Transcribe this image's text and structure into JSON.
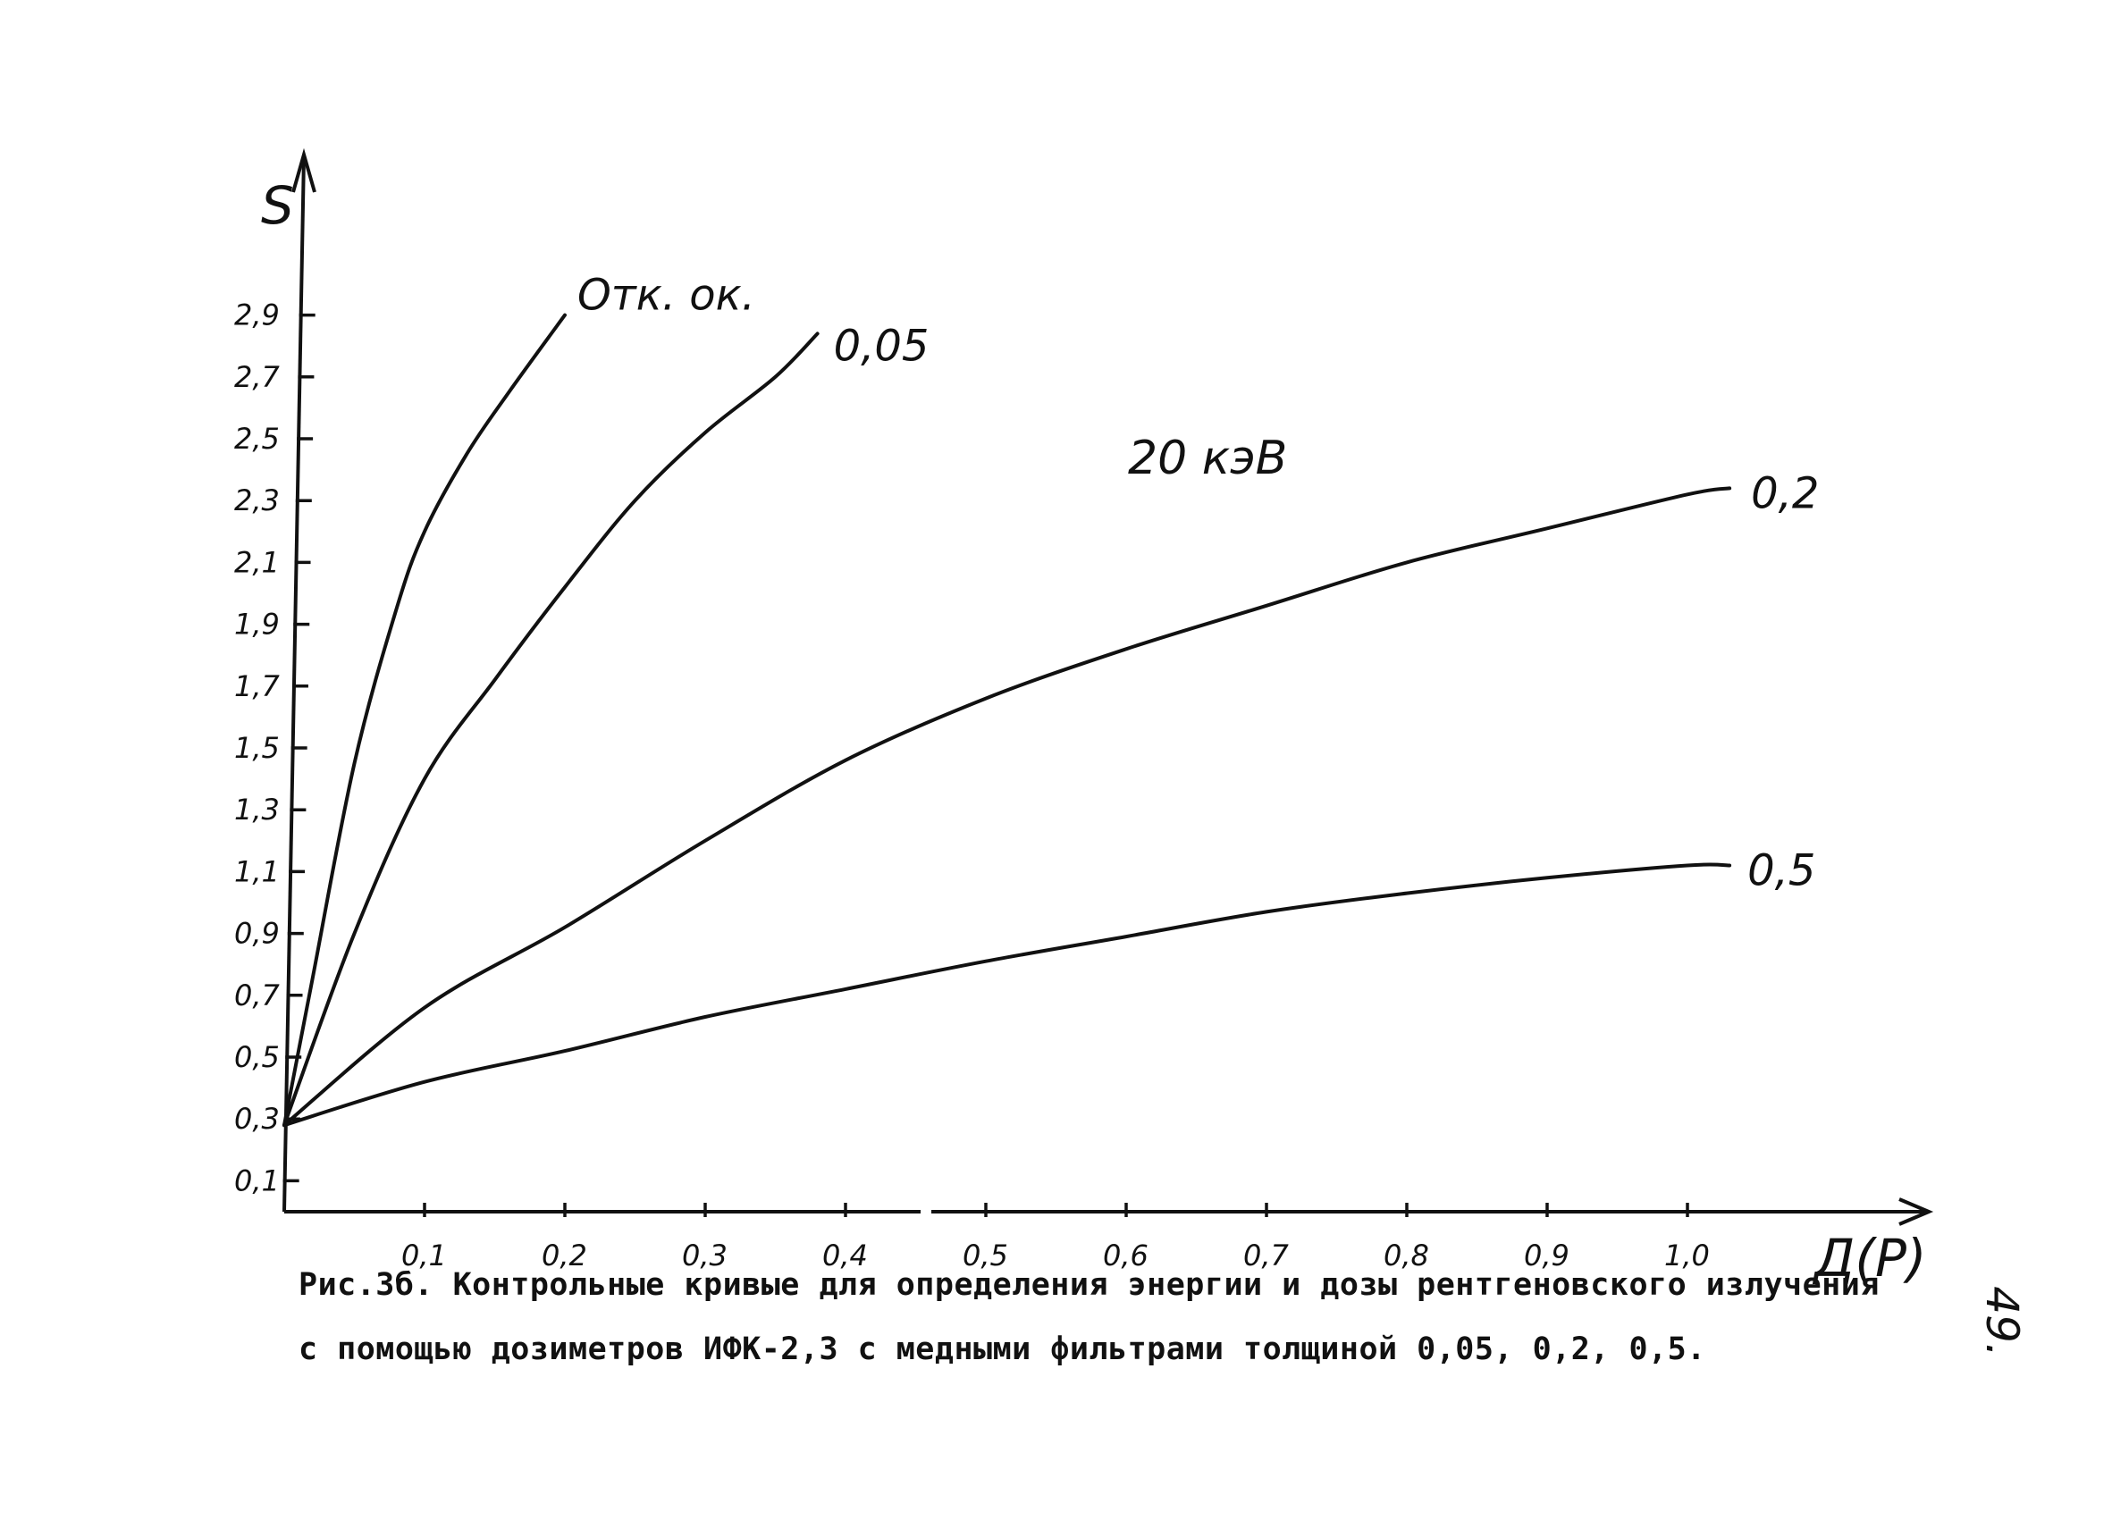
{
  "chart_data": {
    "type": "line",
    "ylabel": "S",
    "xlabel": "Д(Р)",
    "xlim": [
      0,
      1.17
    ],
    "ylim": [
      0,
      3.3
    ],
    "x_ticks": [
      {
        "value": 0.1,
        "label": "0,1"
      },
      {
        "value": 0.2,
        "label": "0,2"
      },
      {
        "value": 0.3,
        "label": "0,3"
      },
      {
        "value": 0.4,
        "label": "0,4"
      },
      {
        "value": 0.5,
        "label": "0,5"
      },
      {
        "value": 0.6,
        "label": "0,6"
      },
      {
        "value": 0.7,
        "label": "0,7"
      },
      {
        "value": 0.8,
        "label": "0,8"
      },
      {
        "value": 0.9,
        "label": "0,9"
      },
      {
        "value": 1.0,
        "label": "1,0"
      }
    ],
    "y_ticks": [
      {
        "value": 0.1,
        "label": "0,1"
      },
      {
        "value": 0.3,
        "label": "0,3"
      },
      {
        "value": 0.5,
        "label": "0,5"
      },
      {
        "value": 0.7,
        "label": "0,7"
      },
      {
        "value": 0.9,
        "label": "0,9"
      },
      {
        "value": 1.1,
        "label": "1,1"
      },
      {
        "value": 1.3,
        "label": "1,3"
      },
      {
        "value": 1.5,
        "label": "1,5"
      },
      {
        "value": 1.7,
        "label": "1,7"
      },
      {
        "value": 1.9,
        "label": "1,9"
      },
      {
        "value": 2.1,
        "label": "2,1"
      },
      {
        "value": 2.3,
        "label": "2,3"
      },
      {
        "value": 2.5,
        "label": "2,5"
      },
      {
        "value": 2.7,
        "label": "2,7"
      },
      {
        "value": 2.9,
        "label": "2,9"
      }
    ],
    "annotation": "20 кэВ",
    "series": [
      {
        "name": "Отк. ок.",
        "points": [
          [
            0.0,
            0.28
          ],
          [
            0.02,
            0.75
          ],
          [
            0.05,
            1.45
          ],
          [
            0.08,
            1.95
          ],
          [
            0.1,
            2.2
          ],
          [
            0.13,
            2.45
          ],
          [
            0.16,
            2.65
          ],
          [
            0.2,
            2.9
          ]
        ]
      },
      {
        "name": "0,05",
        "points": [
          [
            0.0,
            0.28
          ],
          [
            0.05,
            0.9
          ],
          [
            0.1,
            1.4
          ],
          [
            0.15,
            1.72
          ],
          [
            0.2,
            2.02
          ],
          [
            0.25,
            2.3
          ],
          [
            0.3,
            2.52
          ],
          [
            0.35,
            2.7
          ],
          [
            0.38,
            2.84
          ]
        ]
      },
      {
        "name": "0,2",
        "points": [
          [
            0.0,
            0.28
          ],
          [
            0.1,
            0.66
          ],
          [
            0.2,
            0.92
          ],
          [
            0.3,
            1.2
          ],
          [
            0.4,
            1.46
          ],
          [
            0.5,
            1.66
          ],
          [
            0.6,
            1.82
          ],
          [
            0.7,
            1.96
          ],
          [
            0.8,
            2.1
          ],
          [
            0.9,
            2.21
          ],
          [
            1.0,
            2.32
          ],
          [
            1.03,
            2.34
          ]
        ]
      },
      {
        "name": "0,5",
        "points": [
          [
            0.0,
            0.28
          ],
          [
            0.1,
            0.42
          ],
          [
            0.2,
            0.52
          ],
          [
            0.3,
            0.63
          ],
          [
            0.4,
            0.72
          ],
          [
            0.5,
            0.81
          ],
          [
            0.6,
            0.89
          ],
          [
            0.7,
            0.97
          ],
          [
            0.8,
            1.03
          ],
          [
            0.9,
            1.08
          ],
          [
            1.0,
            1.12
          ],
          [
            1.03,
            1.12
          ]
        ]
      }
    ]
  },
  "caption": {
    "line1": "Рис.3б. Контрольные кривые для определения энергии и дозы рентгеновского излучения",
    "line2": "с помощью дозиметров ИФК-2,3 с медными фильтрами толщиной 0,05, 0,2, 0,5."
  },
  "page_number": "49."
}
